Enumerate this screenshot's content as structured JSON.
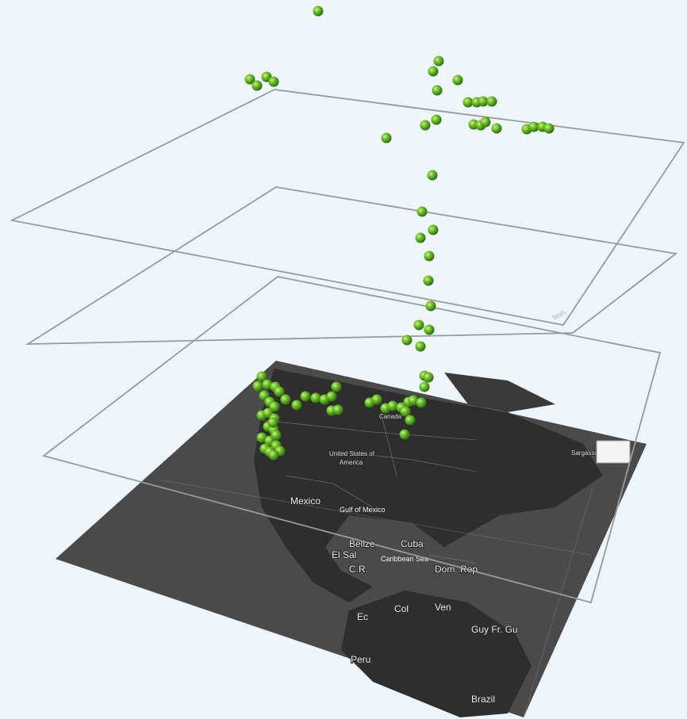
{
  "map": {
    "labels": {
      "canada": "Canada",
      "usa_line1": "United States of",
      "usa_line2": "America",
      "mexico": "Mexico",
      "gulf": "Gulf of Mexico",
      "cuba": "Cuba",
      "belize": "Belize",
      "el_salvador": "El Sal",
      "cr": "C.R.",
      "dom_rep": "Dom. Rep",
      "caribbean": "Caribbean Sea",
      "col": "Col",
      "ven": "Ven",
      "guy": "Guy Fr. Gu",
      "ec": "Ec",
      "peru": "Peru",
      "brazil": "Brazil",
      "sargasso": "Sargasso"
    }
  },
  "points": {
    "color": "#6cc024",
    "count_visible": 100
  },
  "plane_tag": "StatL"
}
